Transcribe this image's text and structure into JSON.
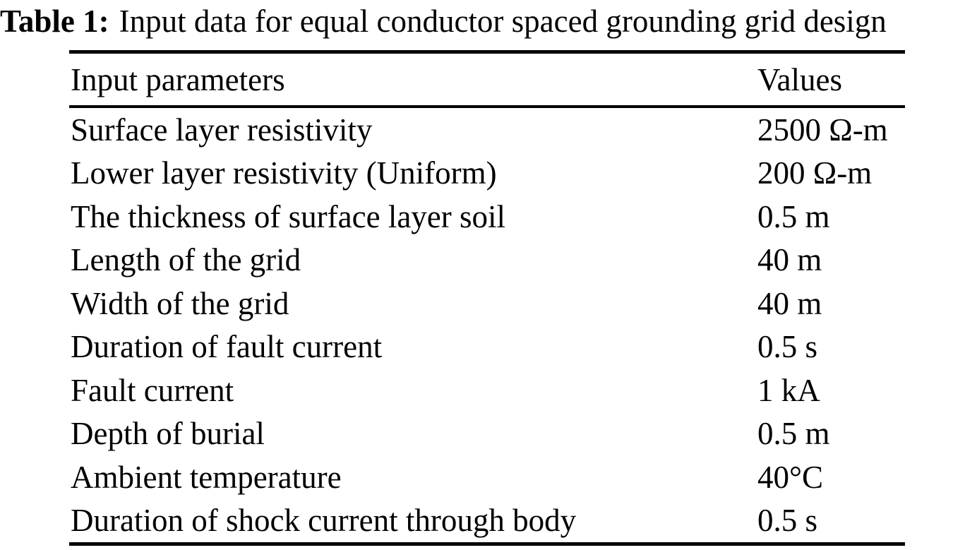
{
  "table": {
    "caption": {
      "label": "Table 1:",
      "text": "Input data for equal conductor spaced grounding grid design"
    },
    "columns": {
      "parameter": "Input parameters",
      "value": "Values"
    },
    "rows": [
      {
        "parameter": "Surface layer resistivity",
        "value": "2500 Ω-m"
      },
      {
        "parameter": "Lower layer resistivity (Uniform)",
        "value": "200 Ω-m"
      },
      {
        "parameter": "The thickness of surface layer soil",
        "value": "0.5 m"
      },
      {
        "parameter": "Length of the grid",
        "value": "40 m"
      },
      {
        "parameter": "Width of the grid",
        "value": "40 m"
      },
      {
        "parameter": "Duration of fault current",
        "value": "0.5 s"
      },
      {
        "parameter": "Fault current",
        "value": "1 kA"
      },
      {
        "parameter": "Depth of burial",
        "value": "0.5 m"
      },
      {
        "parameter": "Ambient temperature",
        "value": "40°C"
      },
      {
        "parameter": "Duration of shock current through body",
        "value": "0.5 s"
      }
    ],
    "colors": {
      "text": "#000000",
      "background": "#ffffff",
      "rule": "#000000"
    }
  }
}
